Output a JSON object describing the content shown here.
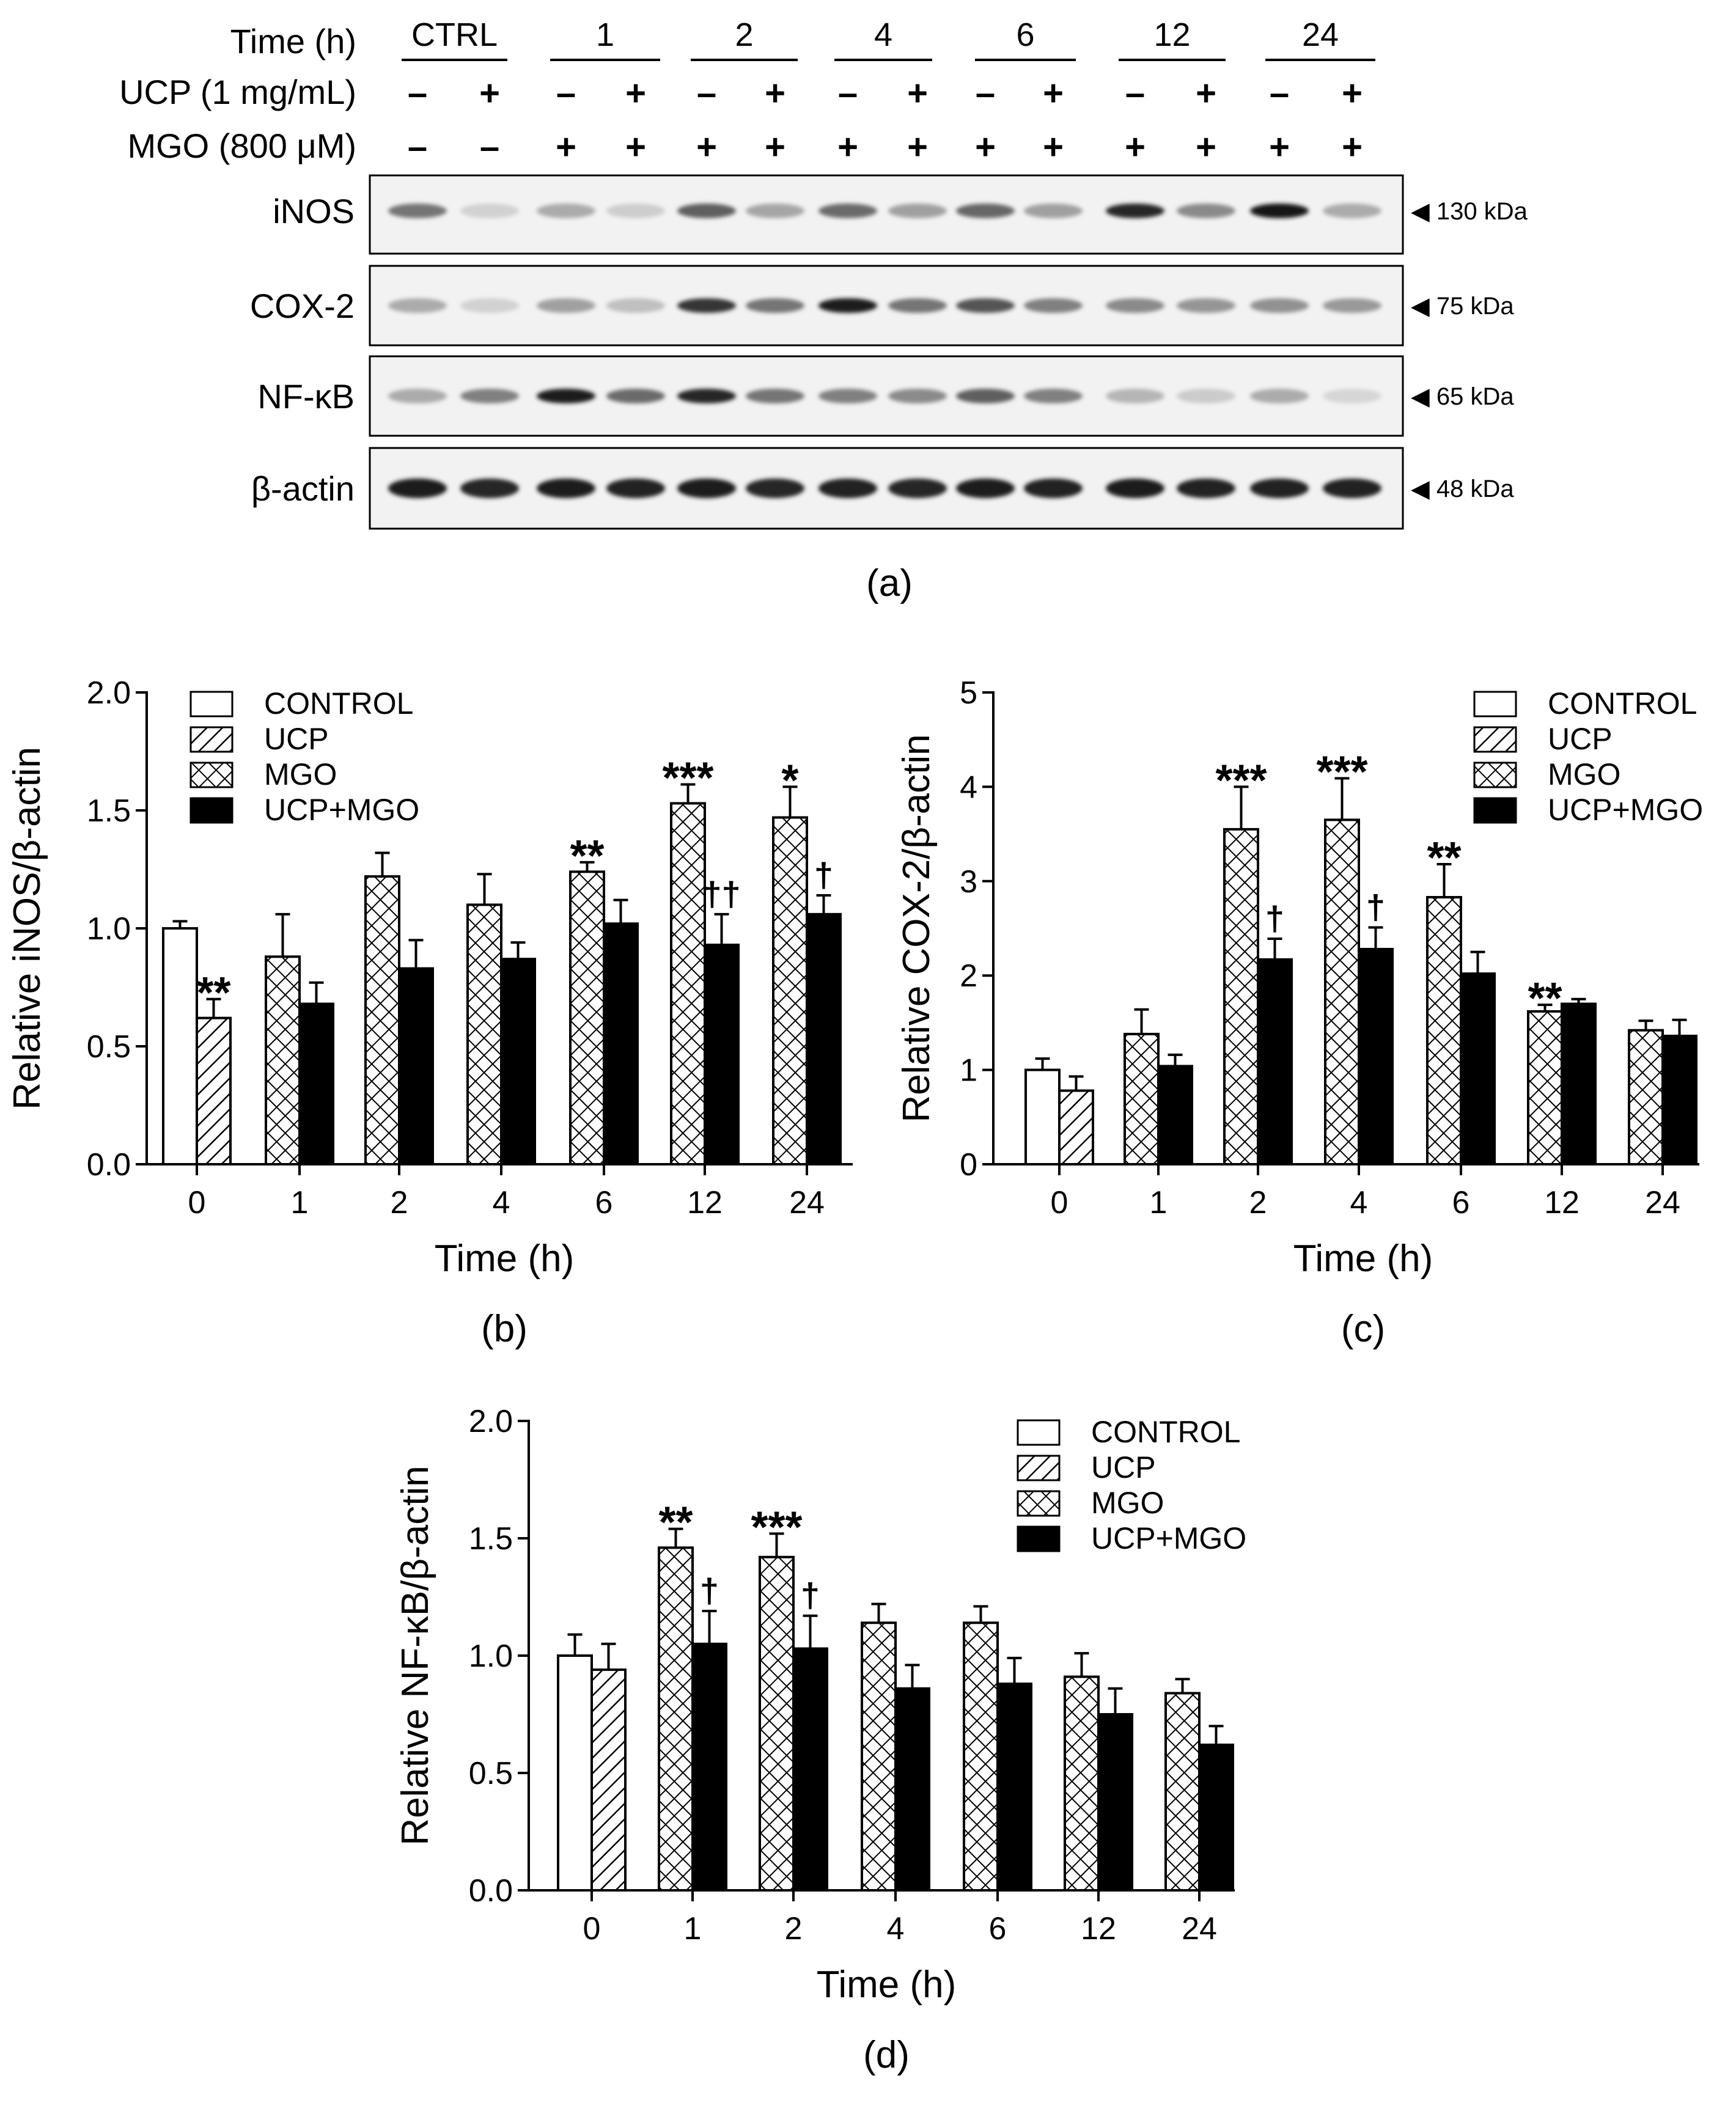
{
  "panel_a": {
    "caption": "(a)",
    "row_labels": [
      "Time (h)",
      "UCP (1 mg/mL)",
      "MGO (800 μM)"
    ],
    "time_groups": [
      "CTRL",
      "1",
      "2",
      "4",
      "6",
      "12",
      "24"
    ],
    "ucp_signs": [
      "–",
      "+",
      "–",
      "+",
      "–",
      "+",
      "–",
      "+",
      "–",
      "+",
      "–",
      "+",
      "–",
      "+"
    ],
    "mgo_signs": [
      "–",
      "–",
      "+",
      "+",
      "+",
      "+",
      "+",
      "+",
      "+",
      "+",
      "+",
      "+",
      "+",
      "+"
    ],
    "blots": [
      {
        "label": "iNOS",
        "size": "◀ 130 kDa",
        "intensity": [
          0.55,
          0.12,
          0.3,
          0.14,
          0.65,
          0.32,
          0.6,
          0.35,
          0.62,
          0.35,
          0.92,
          0.45,
          0.98,
          0.3
        ]
      },
      {
        "label": "COX-2",
        "size": "◀ 75 kDa",
        "intensity": [
          0.3,
          0.12,
          0.35,
          0.2,
          0.85,
          0.55,
          0.95,
          0.55,
          0.7,
          0.5,
          0.45,
          0.4,
          0.42,
          0.38
        ]
      },
      {
        "label": "NF-κB",
        "size": "◀ 65 kDa",
        "intensity": [
          0.3,
          0.5,
          0.95,
          0.6,
          0.92,
          0.55,
          0.5,
          0.45,
          0.65,
          0.5,
          0.25,
          0.15,
          0.3,
          0.1
        ]
      },
      {
        "label": "β-actin",
        "size": "◀ 48 kDa",
        "intensity": [
          0.95,
          0.92,
          0.95,
          0.93,
          0.96,
          0.92,
          0.93,
          0.92,
          0.95,
          0.93,
          0.96,
          0.93,
          0.94,
          0.93
        ]
      }
    ]
  },
  "chart_data": [
    {
      "panel": "(b)",
      "type": "bar",
      "xlabel": "Time (h)",
      "ylabel": "Relative iNOS/β-actin",
      "ylim": [
        0,
        2.0
      ],
      "yticks": [
        "0.0",
        "0.5",
        "1.0",
        "1.5",
        "2.0"
      ],
      "categories": [
        "0",
        "1",
        "2",
        "4",
        "6",
        "12",
        "24"
      ],
      "legend": [
        "CONTROL",
        "UCP",
        "MGO",
        "UCP+MGO"
      ],
      "legend_position": "top-left",
      "bars": [
        {
          "cat": "0",
          "series": "CONTROL",
          "value": 1.0,
          "err": 0.03,
          "label": ""
        },
        {
          "cat": "0",
          "series": "UCP",
          "value": 0.62,
          "err": 0.08,
          "label": "**"
        },
        {
          "cat": "1",
          "series": "MGO",
          "value": 0.88,
          "err": 0.18,
          "label": ""
        },
        {
          "cat": "1",
          "series": "UCP+MGO",
          "value": 0.68,
          "err": 0.09,
          "label": ""
        },
        {
          "cat": "2",
          "series": "MGO",
          "value": 1.22,
          "err": 0.1,
          "label": ""
        },
        {
          "cat": "2",
          "series": "UCP+MGO",
          "value": 0.83,
          "err": 0.12,
          "label": ""
        },
        {
          "cat": "4",
          "series": "MGO",
          "value": 1.1,
          "err": 0.13,
          "label": ""
        },
        {
          "cat": "4",
          "series": "UCP+MGO",
          "value": 0.87,
          "err": 0.07,
          "label": ""
        },
        {
          "cat": "6",
          "series": "MGO",
          "value": 1.24,
          "err": 0.04,
          "label": "**"
        },
        {
          "cat": "6",
          "series": "UCP+MGO",
          "value": 1.02,
          "err": 0.1,
          "label": ""
        },
        {
          "cat": "12",
          "series": "MGO",
          "value": 1.53,
          "err": 0.08,
          "label": "***"
        },
        {
          "cat": "12",
          "series": "UCP+MGO",
          "value": 0.93,
          "err": 0.13,
          "label": "††"
        },
        {
          "cat": "24",
          "series": "MGO",
          "value": 1.47,
          "err": 0.13,
          "label": "*"
        },
        {
          "cat": "24",
          "series": "UCP+MGO",
          "value": 1.06,
          "err": 0.08,
          "label": "†"
        }
      ]
    },
    {
      "panel": "(c)",
      "type": "bar",
      "xlabel": "Time (h)",
      "ylabel": "Relative COX-2/β-actin",
      "ylim": [
        0,
        5
      ],
      "yticks": [
        "0",
        "1",
        "2",
        "3",
        "4",
        "5"
      ],
      "categories": [
        "0",
        "1",
        "2",
        "4",
        "6",
        "12",
        "24"
      ],
      "legend": [
        "CONTROL",
        "UCP",
        "MGO",
        "UCP+MGO"
      ],
      "legend_position": "top-right",
      "bars": [
        {
          "cat": "0",
          "series": "CONTROL",
          "value": 1.0,
          "err": 0.12,
          "label": ""
        },
        {
          "cat": "0",
          "series": "UCP",
          "value": 0.78,
          "err": 0.15,
          "label": ""
        },
        {
          "cat": "1",
          "series": "MGO",
          "value": 1.38,
          "err": 0.26,
          "label": ""
        },
        {
          "cat": "1",
          "series": "UCP+MGO",
          "value": 1.04,
          "err": 0.12,
          "label": ""
        },
        {
          "cat": "2",
          "series": "MGO",
          "value": 3.55,
          "err": 0.45,
          "label": "***"
        },
        {
          "cat": "2",
          "series": "UCP+MGO",
          "value": 2.17,
          "err": 0.22,
          "label": "†"
        },
        {
          "cat": "4",
          "series": "MGO",
          "value": 3.65,
          "err": 0.44,
          "label": "***"
        },
        {
          "cat": "4",
          "series": "UCP+MGO",
          "value": 2.28,
          "err": 0.23,
          "label": "†"
        },
        {
          "cat": "6",
          "series": "MGO",
          "value": 2.83,
          "err": 0.35,
          "label": "**"
        },
        {
          "cat": "6",
          "series": "UCP+MGO",
          "value": 2.02,
          "err": 0.23,
          "label": ""
        },
        {
          "cat": "12",
          "series": "MGO",
          "value": 1.62,
          "err": 0.07,
          "label": "**"
        },
        {
          "cat": "12",
          "series": "UCP+MGO",
          "value": 1.7,
          "err": 0.05,
          "label": ""
        },
        {
          "cat": "24",
          "series": "MGO",
          "value": 1.42,
          "err": 0.1,
          "label": ""
        },
        {
          "cat": "24",
          "series": "UCP+MGO",
          "value": 1.36,
          "err": 0.17,
          "label": ""
        }
      ]
    },
    {
      "panel": "(d)",
      "type": "bar",
      "xlabel": "Time (h)",
      "ylabel": "Relative NF-κB/β-actin",
      "ylim": [
        0,
        2.0
      ],
      "yticks": [
        "0.0",
        "0.5",
        "1.0",
        "1.5",
        "2.0"
      ],
      "categories": [
        "0",
        "1",
        "2",
        "4",
        "6",
        "12",
        "24"
      ],
      "legend": [
        "CONTROL",
        "UCP",
        "MGO",
        "UCP+MGO"
      ],
      "legend_position": "top-right",
      "bars": [
        {
          "cat": "0",
          "series": "CONTROL",
          "value": 1.0,
          "err": 0.09,
          "label": ""
        },
        {
          "cat": "0",
          "series": "UCP",
          "value": 0.94,
          "err": 0.11,
          "label": ""
        },
        {
          "cat": "1",
          "series": "MGO",
          "value": 1.46,
          "err": 0.08,
          "label": "**"
        },
        {
          "cat": "1",
          "series": "UCP+MGO",
          "value": 1.05,
          "err": 0.14,
          "label": "†"
        },
        {
          "cat": "2",
          "series": "MGO",
          "value": 1.42,
          "err": 0.1,
          "label": "***"
        },
        {
          "cat": "2",
          "series": "UCP+MGO",
          "value": 1.03,
          "err": 0.14,
          "label": "†"
        },
        {
          "cat": "4",
          "series": "MGO",
          "value": 1.14,
          "err": 0.08,
          "label": ""
        },
        {
          "cat": "4",
          "series": "UCP+MGO",
          "value": 0.86,
          "err": 0.1,
          "label": ""
        },
        {
          "cat": "6",
          "series": "MGO",
          "value": 1.14,
          "err": 0.07,
          "label": ""
        },
        {
          "cat": "6",
          "series": "UCP+MGO",
          "value": 0.88,
          "err": 0.11,
          "label": ""
        },
        {
          "cat": "12",
          "series": "MGO",
          "value": 0.91,
          "err": 0.1,
          "label": ""
        },
        {
          "cat": "12",
          "series": "UCP+MGO",
          "value": 0.75,
          "err": 0.11,
          "label": ""
        },
        {
          "cat": "24",
          "series": "MGO",
          "value": 0.84,
          "err": 0.06,
          "label": ""
        },
        {
          "cat": "24",
          "series": "UCP+MGO",
          "value": 0.62,
          "err": 0.08,
          "label": ""
        }
      ]
    }
  ]
}
